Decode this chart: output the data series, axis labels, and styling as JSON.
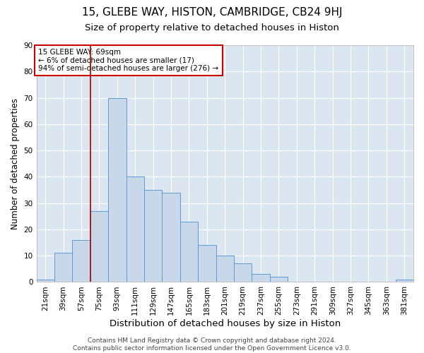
{
  "title_line1": "15, GLEBE WAY, HISTON, CAMBRIDGE, CB24 9HJ",
  "title_line2": "Size of property relative to detached houses in Histon",
  "xlabel": "Distribution of detached houses by size in Histon",
  "ylabel": "Number of detached properties",
  "categories": [
    "21sqm",
    "39sqm",
    "57sqm",
    "75sqm",
    "93sqm",
    "111sqm",
    "129sqm",
    "147sqm",
    "165sqm",
    "183sqm",
    "201sqm",
    "219sqm",
    "237sqm",
    "255sqm",
    "273sqm",
    "291sqm",
    "309sqm",
    "327sqm",
    "345sqm",
    "363sqm",
    "381sqm"
  ],
  "values": [
    1,
    11,
    16,
    27,
    70,
    40,
    35,
    34,
    23,
    14,
    10,
    7,
    3,
    2,
    0,
    0,
    0,
    0,
    0,
    0,
    1
  ],
  "bar_color": "#c8d8e8",
  "bar_edge_color": "#5b9bd5",
  "vline_x_index": 3,
  "vline_color": "#aa0000",
  "annotation_text": "15 GLEBE WAY: 69sqm\n← 6% of detached houses are smaller (17)\n94% of semi-detached houses are larger (276) →",
  "annotation_box_color": "white",
  "annotation_box_edge_color": "#cc0000",
  "ylim": [
    0,
    90
  ],
  "yticks": [
    0,
    10,
    20,
    30,
    40,
    50,
    60,
    70,
    80,
    90
  ],
  "background_color": "#dce6f0",
  "grid_color": "white",
  "footer_text": "Contains HM Land Registry data © Crown copyright and database right 2024.\nContains public sector information licensed under the Open Government Licence v3.0.",
  "title1_fontsize": 11,
  "title2_fontsize": 9.5,
  "xlabel_fontsize": 9.5,
  "ylabel_fontsize": 8.5,
  "tick_fontsize": 7.5,
  "annotation_fontsize": 7.5,
  "footer_fontsize": 6.5
}
